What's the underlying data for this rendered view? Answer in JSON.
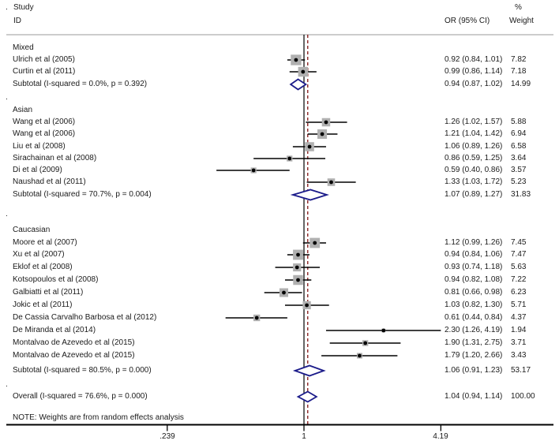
{
  "header": {
    "dot": ".",
    "study_line1": "Study",
    "study_line2": "ID",
    "percent": "%",
    "or_col": "OR (95% CI)",
    "weight_col": "Weight"
  },
  "note": "NOTE: Weights are from random effects analysis",
  "separator": ".",
  "axis": {
    "scale": "log",
    "ticks": [
      ".239",
      "1",
      "4.19"
    ],
    "tick_values": [
      0.239,
      1,
      4.19
    ]
  },
  "colors": {
    "text": "#1a1a1a",
    "ci_line": "#000000",
    "effect_box": "#b0b0b0",
    "effect_dot": "#000000",
    "diamond_stroke": "#1b1b8a",
    "diamond_fill": "#ffffff",
    "null_line": "#000000",
    "overall_dashed_line": "#8b2525",
    "header_rule": "#9a9a9a",
    "axis_line": "#000000"
  },
  "chart_data": {
    "type": "forest",
    "effect_measure": "OR",
    "null_line_value": 1,
    "overall_line_value": 1.04,
    "x_axis_ticks": [
      0.239,
      1,
      4.19
    ],
    "groups": [
      {
        "label": "Mixed",
        "studies": [
          {
            "name": "Ulrich et al (2005)",
            "or": 0.92,
            "ci_low": 0.84,
            "ci_high": 1.01,
            "weight": 7.82,
            "or_text": "0.92 (0.84, 1.01)",
            "weight_text": "7.82"
          },
          {
            "name": "Curtin et al (2011)",
            "or": 0.99,
            "ci_low": 0.86,
            "ci_high": 1.14,
            "weight": 7.18,
            "or_text": "0.99 (0.86, 1.14)",
            "weight_text": "7.18"
          }
        ],
        "subtotal": {
          "name": "Subtotal  (I-squared = 0.0%, p = 0.392)",
          "or": 0.94,
          "ci_low": 0.87,
          "ci_high": 1.02,
          "or_text": "0.94 (0.87, 1.02)",
          "weight_text": "14.99"
        }
      },
      {
        "label": "Asian",
        "studies": [
          {
            "name": "Wang et al (2006)",
            "or": 1.26,
            "ci_low": 1.02,
            "ci_high": 1.57,
            "weight": 5.88,
            "or_text": "1.26 (1.02, 1.57)",
            "weight_text": "5.88"
          },
          {
            "name": "Wang et al (2006)",
            "or": 1.21,
            "ci_low": 1.04,
            "ci_high": 1.42,
            "weight": 6.94,
            "or_text": "1.21 (1.04, 1.42)",
            "weight_text": "6.94"
          },
          {
            "name": "Liu et al (2008)",
            "or": 1.06,
            "ci_low": 0.89,
            "ci_high": 1.26,
            "weight": 6.58,
            "or_text": "1.06 (0.89, 1.26)",
            "weight_text": "6.58"
          },
          {
            "name": "Sirachainan et al (2008)",
            "or": 0.86,
            "ci_low": 0.59,
            "ci_high": 1.25,
            "weight": 3.64,
            "or_text": "0.86 (0.59, 1.25)",
            "weight_text": "3.64"
          },
          {
            "name": "Di et al (2009)",
            "or": 0.59,
            "ci_low": 0.4,
            "ci_high": 0.86,
            "weight": 3.57,
            "or_text": "0.59 (0.40, 0.86)",
            "weight_text": "3.57"
          },
          {
            "name": "Naushad et al (2011)",
            "or": 1.33,
            "ci_low": 1.03,
            "ci_high": 1.72,
            "weight": 5.23,
            "or_text": "1.33 (1.03, 1.72)",
            "weight_text": "5.23"
          }
        ],
        "subtotal": {
          "name": "Subtotal  (I-squared = 70.7%, p = 0.004)",
          "or": 1.07,
          "ci_low": 0.89,
          "ci_high": 1.27,
          "or_text": "1.07 (0.89, 1.27)",
          "weight_text": "31.83"
        }
      },
      {
        "label": "Caucasian",
        "studies": [
          {
            "name": "Moore et al (2007)",
            "or": 1.12,
            "ci_low": 0.99,
            "ci_high": 1.26,
            "weight": 7.45,
            "or_text": "1.12 (0.99, 1.26)",
            "weight_text": "7.45"
          },
          {
            "name": "Xu et al (2007)",
            "or": 0.94,
            "ci_low": 0.84,
            "ci_high": 1.06,
            "weight": 7.47,
            "or_text": "0.94 (0.84, 1.06)",
            "weight_text": "7.47"
          },
          {
            "name": "Eklof et al (2008)",
            "or": 0.93,
            "ci_low": 0.74,
            "ci_high": 1.18,
            "weight": 5.63,
            "or_text": "0.93 (0.74, 1.18)",
            "weight_text": "5.63"
          },
          {
            "name": "Kotsopoulos et al (2008)",
            "or": 0.94,
            "ci_low": 0.82,
            "ci_high": 1.08,
            "weight": 7.22,
            "or_text": "0.94 (0.82, 1.08)",
            "weight_text": "7.22"
          },
          {
            "name": "Galbiatti et al (2011)",
            "or": 0.81,
            "ci_low": 0.66,
            "ci_high": 0.98,
            "weight": 6.23,
            "or_text": "0.81 (0.66, 0.98)",
            "weight_text": "6.23"
          },
          {
            "name": "Jokic et al (2011)",
            "or": 1.03,
            "ci_low": 0.82,
            "ci_high": 1.3,
            "weight": 5.71,
            "or_text": "1.03 (0.82, 1.30)",
            "weight_text": "5.71"
          },
          {
            "name": "De Cassia Carvalho Barbosa et al (2012)",
            "or": 0.61,
            "ci_low": 0.44,
            "ci_high": 0.84,
            "weight": 4.37,
            "or_text": "0.61 (0.44, 0.84)",
            "weight_text": "4.37"
          },
          {
            "name": "De Miranda et al (2014)",
            "or": 2.3,
            "ci_low": 1.26,
            "ci_high": 4.19,
            "weight": 1.94,
            "or_text": "2.30 (1.26, 4.19)",
            "weight_text": "1.94"
          },
          {
            "name": "Montalvao de Azevedo et al (2015)",
            "or": 1.9,
            "ci_low": 1.31,
            "ci_high": 2.75,
            "weight": 3.71,
            "or_text": "1.90 (1.31, 2.75)",
            "weight_text": "3.71"
          },
          {
            "name": "Montalvao de Azevedo et al (2015)",
            "or": 1.79,
            "ci_low": 1.2,
            "ci_high": 2.66,
            "weight": 3.43,
            "or_text": "1.79 (1.20, 2.66)",
            "weight_text": "3.43"
          }
        ],
        "subtotal": {
          "name": "Subtotal  (I-squared = 80.5%, p = 0.000)",
          "or": 1.06,
          "ci_low": 0.91,
          "ci_high": 1.23,
          "or_text": "1.06 (0.91, 1.23)",
          "weight_text": "53.17"
        }
      }
    ],
    "overall": {
      "name": "Overall  (I-squared = 76.6%, p = 0.000)",
      "or": 1.04,
      "ci_low": 0.94,
      "ci_high": 1.14,
      "or_text": "1.04 (0.94, 1.14)",
      "weight_text": "100.00"
    }
  }
}
